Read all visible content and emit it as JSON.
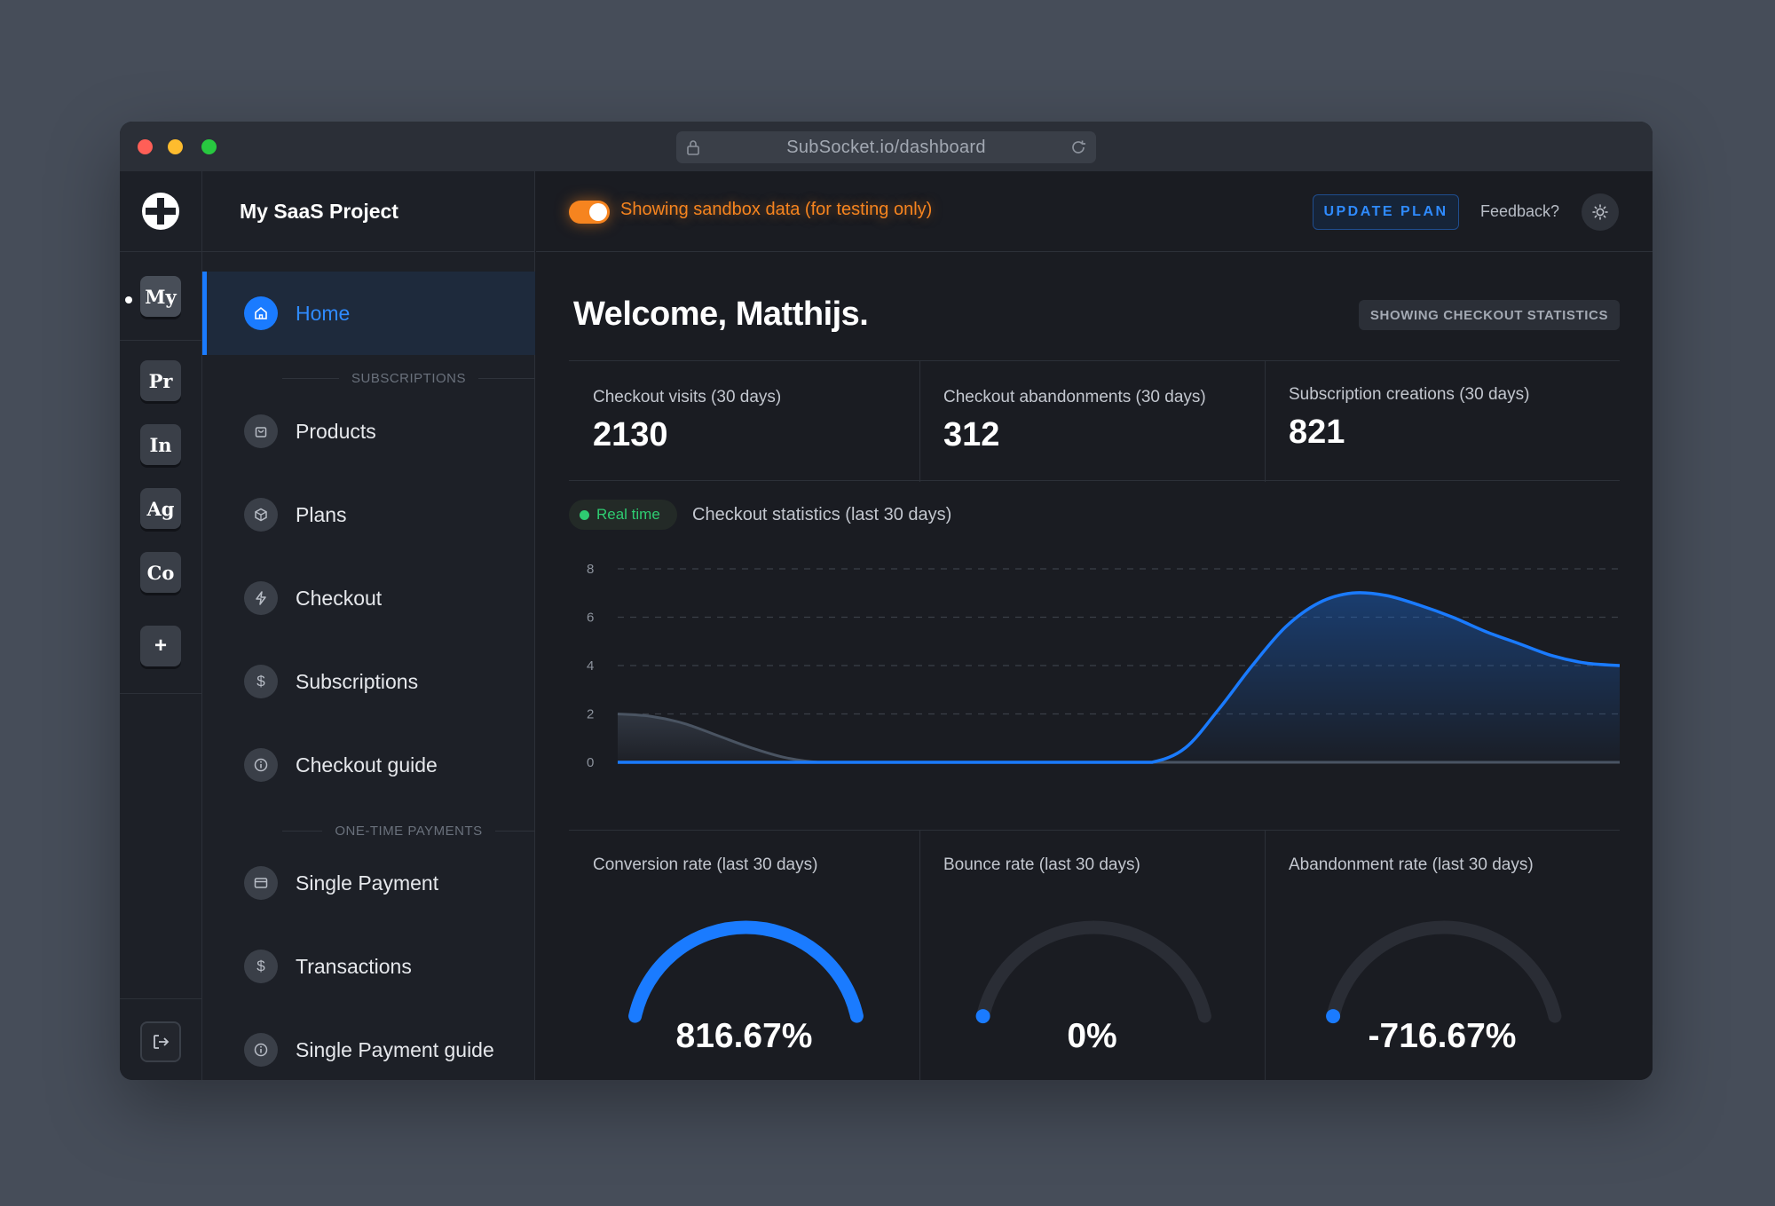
{
  "browser": {
    "url": "SubSocket.io/dashboard"
  },
  "rail": {
    "projects": [
      {
        "abbr": "My",
        "active": true
      },
      {
        "abbr": "Pr"
      },
      {
        "abbr": "In"
      },
      {
        "abbr": "Ag"
      },
      {
        "abbr": "Co"
      }
    ],
    "add_label": "+"
  },
  "sidebar": {
    "project_name": "My SaaS Project",
    "home": "Home",
    "subscriptions_section": "SUBSCRIPTIONS",
    "items": [
      {
        "label": "Products",
        "icon": "bag-icon"
      },
      {
        "label": "Plans",
        "icon": "box-icon"
      },
      {
        "label": "Checkout",
        "icon": "lightning-icon"
      },
      {
        "label": "Subscriptions",
        "icon": "dollar-icon"
      },
      {
        "label": "Checkout guide",
        "icon": "info-icon"
      }
    ],
    "one_time_section": "ONE-TIME PAYMENTS",
    "one_time_items": [
      {
        "label": "Single Payment",
        "icon": "card-icon"
      },
      {
        "label": "Transactions",
        "icon": "dollar-icon"
      },
      {
        "label": "Single Payment guide",
        "icon": "info-icon"
      }
    ]
  },
  "topbar": {
    "sandbox_text": "Showing sandbox data (for testing only)",
    "update_plan": "UPDATE PLAN",
    "feedback": "Feedback?"
  },
  "main": {
    "welcome": "Welcome, Matthijs.",
    "stat_badge": "SHOWING CHECKOUT STATISTICS",
    "stats": [
      {
        "label": "Checkout visits (30 days)",
        "value": "2130"
      },
      {
        "label": "Checkout abandonments (30 days)",
        "value": "312"
      },
      {
        "label": "Subscription creations (30 days)",
        "value": "821"
      }
    ],
    "realtime": "Real time",
    "chart_title": "Checkout statistics (last 30 days)"
  },
  "chart_data": {
    "type": "area",
    "title": "Checkout statistics (last 30 days)",
    "ylim": [
      0,
      8
    ],
    "yticks": [
      "0",
      "2",
      "4",
      "6",
      "8"
    ],
    "x": [
      0,
      1,
      2,
      3,
      4,
      5,
      6,
      7,
      8,
      9,
      10,
      11,
      12,
      13,
      14,
      15,
      16,
      17,
      18,
      19,
      20,
      21,
      22,
      23,
      24,
      25,
      26,
      27,
      28,
      29,
      30
    ],
    "series": [
      {
        "values": [
          0,
          0,
          0,
          0,
          0,
          0,
          0,
          0,
          0,
          0,
          0,
          0,
          0,
          0,
          0,
          0,
          0,
          0.6,
          2.2,
          4.0,
          5.6,
          6.6,
          7.0,
          6.9,
          6.5,
          6.0,
          5.4,
          4.9,
          4.4,
          4.1,
          4.0
        ],
        "color": "#1a7bff"
      },
      {
        "values": [
          2,
          1.9,
          1.6,
          1.1,
          0.6,
          0.2,
          0,
          0,
          0,
          0,
          0,
          0,
          0,
          0,
          0,
          0,
          0,
          0,
          0,
          0,
          0,
          0,
          0,
          0,
          0,
          0,
          0,
          0,
          0,
          0,
          0
        ],
        "color": "#4a5462"
      }
    ],
    "grid": true
  },
  "gauges": [
    {
      "label": "Conversion rate (last 30 days)",
      "value_text": "816.67%",
      "fill": 1.0
    },
    {
      "label": "Bounce rate (last 30 days)",
      "value_text": "0%",
      "fill": 0.0
    },
    {
      "label": "Abandonment rate (last 30 days)",
      "value_text": "-716.67%",
      "fill": 0.0
    }
  ],
  "colors": {
    "accent": "#1a7bff",
    "sandbox": "#f6841f",
    "live": "#2ecc71"
  }
}
